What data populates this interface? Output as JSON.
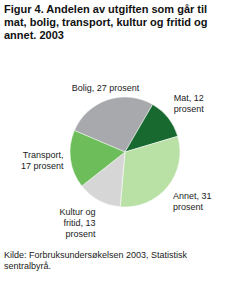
{
  "chart_data": {
    "type": "pie",
    "title": "Figur 4. Andelen av utgiften som går til mat, bolig, transport, kultur og fritid og annet. 2003",
    "categories": [
      "Bolig",
      "Mat",
      "Annet",
      "Kultur og fritid",
      "Transport"
    ],
    "values": [
      27,
      12,
      31,
      13,
      17
    ],
    "value_labels": [
      "Bolig, 27 prosent",
      "Mat, 12 prosent",
      "Annet, 31 prosent",
      "Kultur og fritid, 13 prosent",
      "Transport, 17 prosent"
    ],
    "colors": [
      "#a7a9ac",
      "#17692f",
      "#b9e0a5",
      "#d6d6d6",
      "#6dbd5b"
    ],
    "data_labels": true,
    "source": "Kilde: Forbruksundersøkelsen 2003, Statistisk sentralbyrå."
  }
}
